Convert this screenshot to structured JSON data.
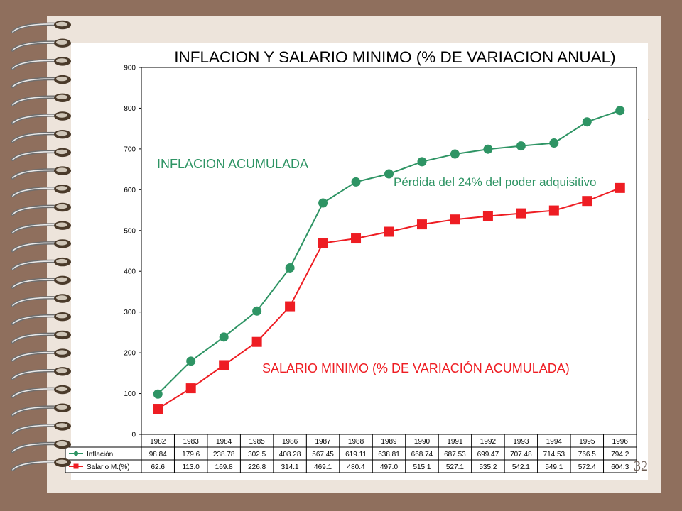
{
  "slide": {
    "number": "32",
    "binding": "spiral-binding",
    "colors": {
      "frame": "#8f6f5d",
      "paper": "#ede4db"
    }
  },
  "chart_data": {
    "type": "line",
    "title": "INFLACION Y SALARIO MINIMO (% DE VARIACION ANUAL)",
    "xlabel": "",
    "ylabel": "",
    "ylim": [
      0,
      900
    ],
    "yticks": [
      0,
      100,
      200,
      300,
      400,
      500,
      600,
      700,
      800,
      900
    ],
    "grid": false,
    "legend": "bottom-left, integrated in data table",
    "categories": [
      "1982",
      "1983",
      "1984",
      "1985",
      "1986",
      "1987",
      "1988",
      "1989",
      "1990",
      "1991",
      "1992",
      "1993",
      "1994",
      "1995",
      "1996"
    ],
    "series": [
      {
        "name": "Inflaciòn",
        "color": "#2e9464",
        "marker": "circle",
        "values": [
          98.84,
          179.6,
          238.78,
          302.5,
          408.28,
          567.45,
          619.11,
          638.81,
          668.74,
          687.53,
          699.47,
          707.48,
          714.53,
          766.5,
          794.2
        ],
        "labels": [
          "98.84",
          "179.6",
          "238.78",
          "302.5",
          "408.28",
          "567.45",
          "619.11",
          "638.81",
          "668.74",
          "687.53",
          "699.47",
          "707.48",
          "714.53",
          "766.5",
          "794.2"
        ]
      },
      {
        "name": "Salario M.(%)",
        "color": "#ee1d23",
        "marker": "square",
        "values": [
          62.6,
          113.0,
          169.8,
          226.8,
          314.1,
          469.1,
          480.4,
          497.0,
          515.1,
          527.1,
          535.2,
          542.1,
          549.1,
          572.4,
          604.3
        ],
        "labels": [
          "62.6",
          "113.0",
          "169.8",
          "226.8",
          "314.1",
          "469.1",
          "480.4",
          "497.0",
          "515.1",
          "527.1",
          "535.2",
          "542.1",
          "549.1",
          "572.4",
          "604.3"
        ]
      }
    ],
    "annotations": [
      {
        "text": "INFLACION ACUMULADA",
        "color": "#2e9464"
      },
      {
        "text": "Pérdida del 24% del poder adquisitivo",
        "color": "#2e9464"
      },
      {
        "text": "SALARIO MINIMO (% DE VARIACIÓN ACUMULADA)",
        "color": "#ee1d23"
      }
    ]
  }
}
